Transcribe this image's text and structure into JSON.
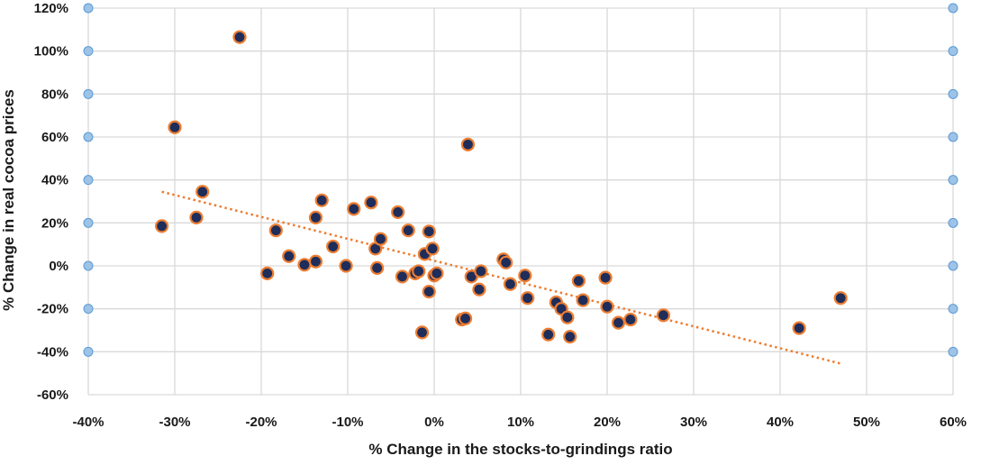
{
  "chart_data": {
    "type": "scatter",
    "title": "",
    "xlabel": "% Change in the stocks-to-grindings ratio",
    "ylabel": "% Change in real cocoa prices",
    "xlim": [
      -40,
      60
    ],
    "ylim": [
      -60,
      120
    ],
    "x_ticks": [
      "-40%",
      "-30%",
      "-20%",
      "-10%",
      "0%",
      "10%",
      "20%",
      "30%",
      "40%",
      "50%",
      "60%"
    ],
    "y_ticks": [
      "120%",
      "100%",
      "80%",
      "60%",
      "40%",
      "20%",
      "0%",
      "-20%",
      "-40%",
      "-60%"
    ],
    "x_tick_values": [
      -40,
      -30,
      -20,
      -10,
      0,
      10,
      20,
      30,
      40,
      50,
      60
    ],
    "y_tick_values": [
      120,
      100,
      80,
      60,
      40,
      20,
      0,
      -20,
      -40,
      -60
    ],
    "grid": true,
    "legend": "none",
    "trendline": {
      "style": "dotted",
      "color": "#ED7D31",
      "x": [
        -31.5,
        47
      ],
      "y": [
        34.5,
        -45.5
      ]
    },
    "colors": {
      "marker_fill": "#1F2D5A",
      "marker_edge": "#ED7D31",
      "gridline": "#d9d9d9",
      "axis_marker": "#9DC3E6"
    },
    "points": [
      {
        "x": -31.5,
        "y": 18.5
      },
      {
        "x": -30.0,
        "y": 64.5
      },
      {
        "x": -27.5,
        "y": 22.5
      },
      {
        "x": -26.8,
        "y": 34.5
      },
      {
        "x": -22.5,
        "y": 106.5
      },
      {
        "x": -19.3,
        "y": -3.5
      },
      {
        "x": -18.3,
        "y": 16.5
      },
      {
        "x": -16.8,
        "y": 4.5
      },
      {
        "x": -15.0,
        "y": 0.5
      },
      {
        "x": -13.7,
        "y": 2.0
      },
      {
        "x": -13.7,
        "y": 22.5
      },
      {
        "x": -13.0,
        "y": 30.5
      },
      {
        "x": -11.7,
        "y": 9.0
      },
      {
        "x": -10.2,
        "y": 0.0
      },
      {
        "x": -9.3,
        "y": 26.5
      },
      {
        "x": -7.3,
        "y": 29.5
      },
      {
        "x": -6.8,
        "y": 8.0
      },
      {
        "x": -6.6,
        "y": -1.0
      },
      {
        "x": -6.2,
        "y": 12.5
      },
      {
        "x": -4.2,
        "y": 25.0
      },
      {
        "x": -3.7,
        "y": -5.0
      },
      {
        "x": -3.0,
        "y": 16.5
      },
      {
        "x": -2.2,
        "y": -3.5
      },
      {
        "x": -1.8,
        "y": -2.5
      },
      {
        "x": -1.4,
        "y": -31.0
      },
      {
        "x": -1.1,
        "y": 5.5
      },
      {
        "x": -0.6,
        "y": 16.0
      },
      {
        "x": -0.6,
        "y": -12.0
      },
      {
        "x": -0.2,
        "y": 8.0
      },
      {
        "x": 0.0,
        "y": -4.5
      },
      {
        "x": 0.3,
        "y": -3.5
      },
      {
        "x": 3.2,
        "y": -25.0
      },
      {
        "x": 3.6,
        "y": -24.5
      },
      {
        "x": 3.9,
        "y": 56.5
      },
      {
        "x": 4.3,
        "y": -5.0
      },
      {
        "x": 5.2,
        "y": -11.0
      },
      {
        "x": 5.4,
        "y": -2.5
      },
      {
        "x": 8.0,
        "y": 3.0
      },
      {
        "x": 8.3,
        "y": 1.5
      },
      {
        "x": 8.8,
        "y": -8.5
      },
      {
        "x": 10.5,
        "y": -4.5
      },
      {
        "x": 10.8,
        "y": -15.0
      },
      {
        "x": 13.2,
        "y": -32.0
      },
      {
        "x": 14.1,
        "y": -17.0
      },
      {
        "x": 14.7,
        "y": -20.0
      },
      {
        "x": 15.4,
        "y": -24.0
      },
      {
        "x": 15.7,
        "y": -33.0
      },
      {
        "x": 16.7,
        "y": -7.0
      },
      {
        "x": 17.2,
        "y": -16.0
      },
      {
        "x": 19.8,
        "y": -5.5
      },
      {
        "x": 20.0,
        "y": -19.0
      },
      {
        "x": 21.3,
        "y": -26.5
      },
      {
        "x": 22.7,
        "y": -25.0
      },
      {
        "x": 26.5,
        "y": -23.0
      },
      {
        "x": 42.2,
        "y": -29.0
      },
      {
        "x": 47.0,
        "y": -15.0
      }
    ]
  }
}
